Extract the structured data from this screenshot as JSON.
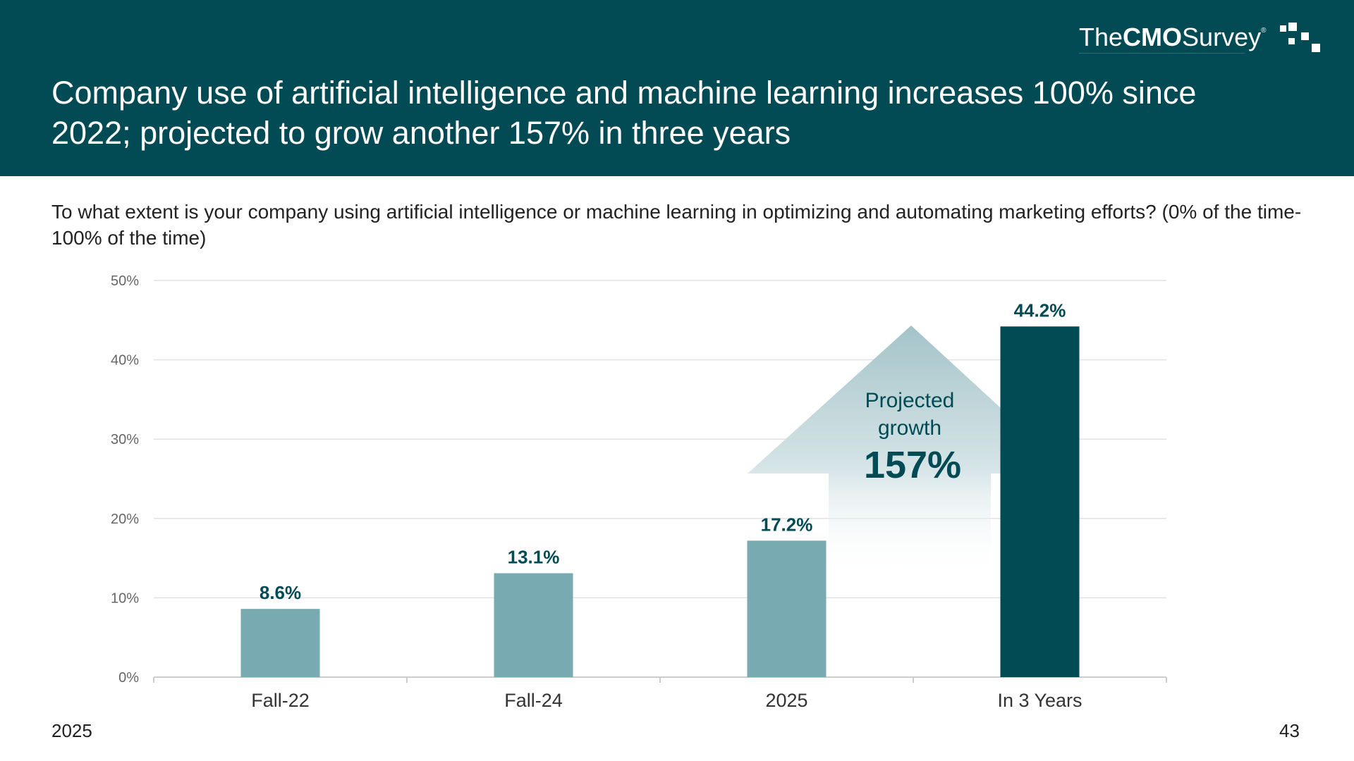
{
  "header": {
    "title": "Company use of artificial intelligence and machine learning increases 100% since 2022; projected to grow another 157% in three years",
    "logo": {
      "the": "The",
      "cmo": "CMO",
      "survey": "Survey",
      "registered": "®"
    },
    "background_color": "#024b55"
  },
  "question": "To what extent is your company using artificial intelligence or machine learning in optimizing and automating marketing efforts? (0% of the time-100% of the time)",
  "chart_data": {
    "type": "bar",
    "categories": [
      "Fall-22",
      "Fall-24",
      "2025",
      "In 3 Years"
    ],
    "values": [
      8.6,
      13.1,
      17.2,
      44.2
    ],
    "value_labels": [
      "8.6%",
      "13.1%",
      "17.2%",
      "44.2%"
    ],
    "bar_colors": [
      "#78aab2",
      "#78aab2",
      "#78aab2",
      "#024b55"
    ],
    "title": "",
    "xlabel": "",
    "ylabel": "",
    "ylim": [
      0,
      50
    ],
    "yticks": [
      0,
      10,
      20,
      30,
      40,
      50
    ],
    "ytick_labels": [
      "0%",
      "10%",
      "20%",
      "30%",
      "40%",
      "50%"
    ],
    "grid": true,
    "annotation": {
      "line1": "Projected",
      "line2": "growth",
      "value": "157%"
    }
  },
  "footer": {
    "year": "2025",
    "page": "43"
  }
}
